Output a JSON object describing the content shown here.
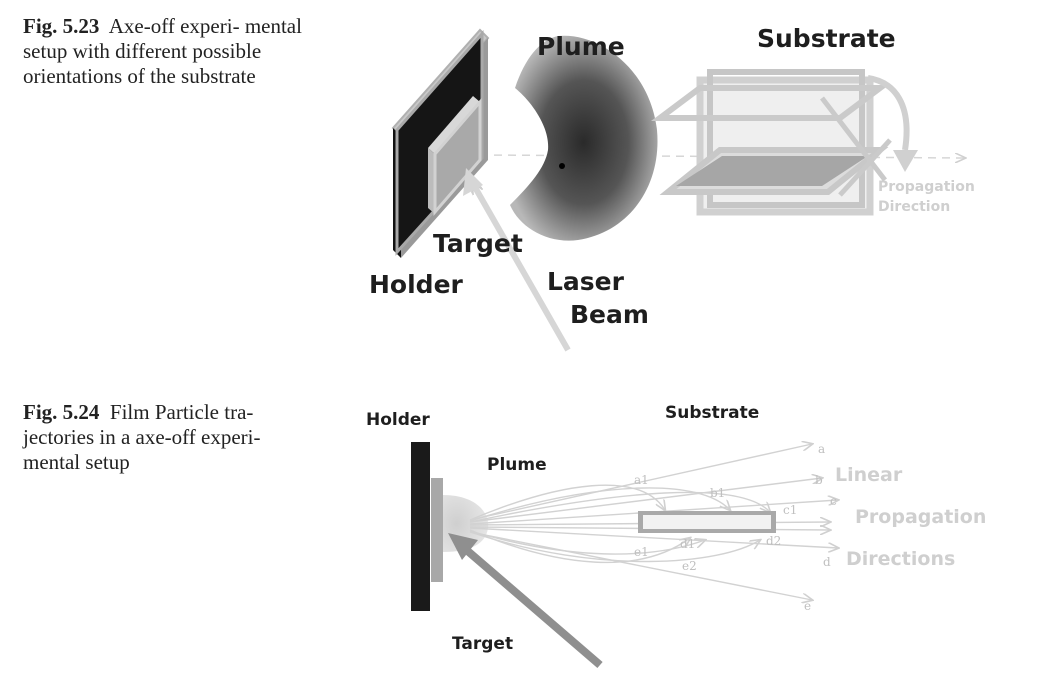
{
  "fig523": {
    "number": "Fig. 5.23",
    "caption": "Axe-off experi-\nmental setup with different possible orientations of the substrate",
    "labels": {
      "plume": "Plume",
      "substrate": "Substrate",
      "target": "Target",
      "holder": "Holder",
      "laser_line1": "Laser",
      "laser_line2": "Beam",
      "prop_line1": "Propagation",
      "prop_line2": "Direction"
    }
  },
  "fig524": {
    "number": "Fig. 5.24",
    "caption": "Film Particle tra-\njectories in a axe-off experi-\nmental setup",
    "labels": {
      "holder": "Holder",
      "substrate": "Substrate",
      "plume": "Plume",
      "target": "Target",
      "linear": "Linear",
      "propagation": "Propagation",
      "directions": "Directions",
      "traj": [
        "a",
        "b",
        "c",
        "d",
        "e",
        "a1",
        "b1",
        "c1",
        "d1",
        "d2",
        "e1",
        "e2"
      ]
    }
  },
  "colors": {
    "dark": "#1a1a1a",
    "mid_gray": "#a8a8a8",
    "light_gray": "#d4d4d4",
    "plume_core": "#3a3a3a"
  }
}
